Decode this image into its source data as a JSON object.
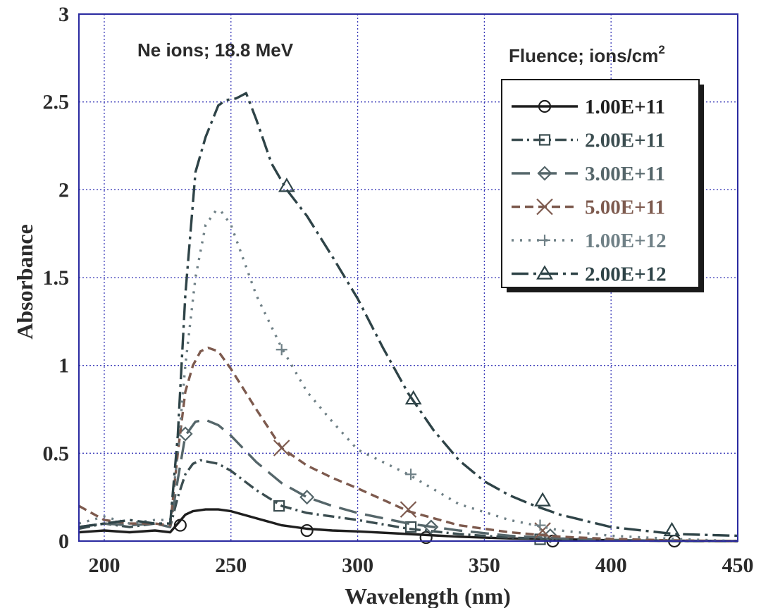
{
  "chart_data": {
    "type": "line",
    "title": "",
    "annotation": "Ne ions; 18.8 MeV",
    "legend_title": "Fluence; ions/cm",
    "legend_title_sup": "2",
    "xlabel": "Wavelength (nm)",
    "ylabel": "Absorbance",
    "xlim": [
      190,
      450
    ],
    "ylim": [
      0,
      3
    ],
    "x_ticks": [
      "200",
      "250",
      "300",
      "350",
      "400",
      "450"
    ],
    "y_ticks": [
      "0",
      "0.5",
      "1",
      "1.5",
      "2",
      "2.5",
      "3"
    ],
    "grid": true,
    "legend_position": "top-right",
    "series": [
      {
        "name": "1.00E+11",
        "color": "#1e1e1e",
        "dash": "",
        "marker": "circle",
        "x": [
          190,
          200,
          210,
          220,
          226,
          229,
          232,
          235,
          240,
          245,
          250,
          260,
          270,
          280,
          290,
          300,
          320,
          340,
          360,
          380,
          400,
          425,
          450
        ],
        "y": [
          0.05,
          0.06,
          0.05,
          0.06,
          0.05,
          0.1,
          0.15,
          0.17,
          0.18,
          0.18,
          0.17,
          0.13,
          0.09,
          0.07,
          0.06,
          0.055,
          0.04,
          0.025,
          0.015,
          0.01,
          0.005,
          0.002,
          0.0
        ],
        "markers_x": [
          230,
          280,
          327,
          377,
          425
        ],
        "markers_y": [
          0.09,
          0.06,
          0.02,
          0.0,
          0.0
        ]
      },
      {
        "name": "2.00E+11",
        "color": "#3b4d50",
        "dash": "16 6 3 6",
        "marker": "square",
        "x": [
          190,
          200,
          210,
          220,
          226,
          229,
          232,
          235,
          238,
          245,
          250,
          260,
          270,
          280,
          290,
          300,
          320,
          340,
          360,
          380,
          400,
          425,
          450
        ],
        "y": [
          0.07,
          0.1,
          0.08,
          0.1,
          0.08,
          0.25,
          0.38,
          0.44,
          0.46,
          0.44,
          0.4,
          0.29,
          0.2,
          0.16,
          0.14,
          0.12,
          0.07,
          0.04,
          0.02,
          0.01,
          0.005,
          0.0,
          0.0
        ],
        "markers_x": [
          269,
          321,
          372
        ],
        "markers_y": [
          0.2,
          0.08,
          0.01
        ]
      },
      {
        "name": "3.00E+11",
        "color": "#55666a",
        "dash": "26 12",
        "marker": "diamond",
        "x": [
          190,
          200,
          210,
          220,
          226,
          229,
          232,
          236,
          240,
          245,
          250,
          260,
          270,
          280,
          290,
          300,
          320,
          340,
          360,
          380,
          400,
          425,
          450
        ],
        "y": [
          0.08,
          0.1,
          0.09,
          0.1,
          0.08,
          0.35,
          0.6,
          0.68,
          0.69,
          0.66,
          0.6,
          0.45,
          0.33,
          0.25,
          0.2,
          0.16,
          0.1,
          0.06,
          0.03,
          0.015,
          0.007,
          0.0,
          0.0
        ],
        "markers_x": [
          232,
          280,
          329,
          376
        ],
        "markers_y": [
          0.61,
          0.25,
          0.08,
          0.03
        ]
      },
      {
        "name": "5.00E+11",
        "color": "#7d5a4e",
        "dash": "12 7",
        "marker": "x",
        "x": [
          190,
          200,
          210,
          220,
          226,
          229,
          232,
          235,
          238,
          241,
          245,
          250,
          260,
          270,
          280,
          290,
          300,
          320,
          340,
          360,
          380,
          400,
          425,
          450
        ],
        "y": [
          0.2,
          0.12,
          0.1,
          0.1,
          0.09,
          0.5,
          0.85,
          1.0,
          1.08,
          1.1,
          1.08,
          0.98,
          0.75,
          0.53,
          0.43,
          0.36,
          0.3,
          0.17,
          0.09,
          0.05,
          0.025,
          0.012,
          0.004,
          0.0
        ],
        "markers_x": [
          270,
          320,
          373
        ],
        "markers_y": [
          0.53,
          0.18,
          0.06
        ]
      },
      {
        "name": "1.00E+12",
        "color": "#6f8086",
        "dash": "3 9",
        "marker": "plus",
        "x": [
          190,
          200,
          210,
          220,
          226,
          229,
          232,
          236,
          240,
          244,
          246,
          250,
          255,
          260,
          270,
          280,
          290,
          300,
          320,
          340,
          360,
          380,
          400,
          425,
          450
        ],
        "y": [
          0.1,
          0.14,
          0.1,
          0.12,
          0.12,
          0.5,
          1.0,
          1.5,
          1.8,
          1.88,
          1.88,
          1.8,
          1.6,
          1.4,
          1.1,
          0.85,
          0.68,
          0.52,
          0.38,
          0.21,
          0.12,
          0.06,
          0.03,
          0.012,
          0.0
        ],
        "markers_x": [
          270,
          321,
          372
        ],
        "markers_y": [
          1.09,
          0.38,
          0.09
        ]
      },
      {
        "name": "2.00E+12",
        "color": "#2e4347",
        "dash": "24 7 4 7",
        "marker": "triangle",
        "x": [
          190,
          200,
          210,
          220,
          226,
          229,
          232,
          236,
          240,
          245,
          248,
          252,
          256,
          260,
          266,
          272,
          280,
          290,
          300,
          310,
          320,
          330,
          340,
          350,
          360,
          370,
          380,
          400,
          425,
          450
        ],
        "y": [
          0.08,
          0.1,
          0.12,
          0.1,
          0.1,
          0.6,
          1.4,
          2.1,
          2.3,
          2.48,
          2.51,
          2.52,
          2.55,
          2.4,
          2.15,
          2.0,
          1.85,
          1.62,
          1.38,
          1.1,
          0.84,
          0.63,
          0.46,
          0.34,
          0.26,
          0.2,
          0.15,
          0.08,
          0.04,
          0.03
        ],
        "markers_x": [
          272,
          322,
          373,
          424
        ],
        "markers_y": [
          2.02,
          0.81,
          0.23,
          0.06
        ]
      }
    ]
  }
}
